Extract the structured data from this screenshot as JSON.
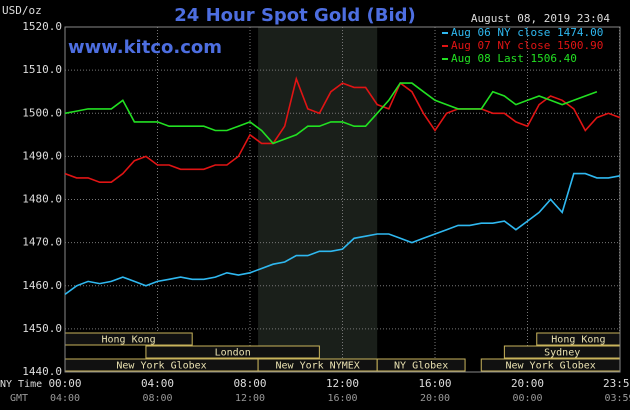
{
  "chart_data": {
    "type": "line",
    "title": "24 Hour Spot Gold (Bid)",
    "watermark": "www.kitco.com",
    "timestamp": "August 08, 2019 23:04",
    "y_label": "USD/oz",
    "x_label": "NY Time",
    "x2_label": "GMT",
    "xlim": [
      0,
      24
    ],
    "ylim": [
      1440,
      1520
    ],
    "grid": true,
    "yticks": [
      {
        "value": 1440,
        "label": "1440.0"
      },
      {
        "value": 1450,
        "label": "1450.0"
      },
      {
        "value": 1460,
        "label": "1460.0"
      },
      {
        "value": 1470,
        "label": "1470.0"
      },
      {
        "value": 1480,
        "label": "1480.0"
      },
      {
        "value": 1490,
        "label": "1490.0"
      },
      {
        "value": 1500,
        "label": "1500.0"
      },
      {
        "value": 1510,
        "label": "1510.0"
      },
      {
        "value": 1520,
        "label": "1520.0"
      }
    ],
    "xticks": [
      {
        "value": 0,
        "label": "00:00"
      },
      {
        "value": 4,
        "label": "04:00"
      },
      {
        "value": 8,
        "label": "08:00"
      },
      {
        "value": 12,
        "label": "12:00"
      },
      {
        "value": 16,
        "label": "16:00"
      },
      {
        "value": 20,
        "label": "20:00"
      },
      {
        "value": 23.98,
        "label": "23:59"
      }
    ],
    "gmt_xticks": [
      {
        "value": 0,
        "label": "04:00"
      },
      {
        "value": 4,
        "label": "08:00"
      },
      {
        "value": 8,
        "label": "12:00"
      },
      {
        "value": 12,
        "label": "16:00"
      },
      {
        "value": 16,
        "label": "20:00"
      },
      {
        "value": 20,
        "label": "00:00"
      },
      {
        "value": 23.98,
        "label": "03:59"
      }
    ],
    "highlight": {
      "start": 8.35,
      "end": 13.5,
      "color": "#1a1f1a"
    },
    "sessions": [
      {
        "name": "Hong Kong",
        "start": 0,
        "end": 5.5,
        "row": 0
      },
      {
        "name": "Hong Kong",
        "start": 20.4,
        "end": 24,
        "row": 0
      },
      {
        "name": "London",
        "start": 3.5,
        "end": 11,
        "row": 1
      },
      {
        "name": "Sydney",
        "start": 19,
        "end": 24,
        "row": 1
      },
      {
        "name": "New York Globex",
        "start": 0,
        "end": 8.35,
        "row": 2
      },
      {
        "name": "New York NYMEX",
        "start": 8.35,
        "end": 13.5,
        "row": 2
      },
      {
        "name": "NY Globex",
        "start": 13.5,
        "end": 17.3,
        "row": 2
      },
      {
        "name": "New York Globex",
        "start": 18,
        "end": 24,
        "row": 2
      }
    ],
    "x": [
      0,
      0.5,
      1,
      1.5,
      2,
      2.5,
      3,
      3.5,
      4,
      4.5,
      5,
      5.5,
      6,
      6.5,
      7,
      7.5,
      8,
      8.5,
      9,
      9.5,
      10,
      10.5,
      11,
      11.5,
      12,
      12.5,
      13,
      13.5,
      14,
      14.5,
      15,
      15.5,
      16,
      16.5,
      17,
      17.5,
      18,
      18.5,
      19,
      19.5,
      20,
      20.5,
      21,
      21.5,
      22,
      22.5,
      23,
      23.5,
      24
    ],
    "series": [
      {
        "name": "Aug 06 NY close 1474.00",
        "color": "#2fb8f0",
        "values": [
          1458,
          1460,
          1461,
          1460.5,
          1461,
          1462,
          1461,
          1460,
          1461,
          1461.5,
          1462,
          1461.5,
          1461.5,
          1462,
          1463,
          1462.5,
          1463,
          1464,
          1465,
          1465.5,
          1467,
          1467,
          1468,
          1468,
          1468.5,
          1471,
          1471.5,
          1472,
          1472,
          1471,
          1470,
          1471,
          1472,
          1473,
          1474,
          1474,
          1474.5,
          1474.5,
          1475,
          1473,
          1475,
          1477,
          1480,
          1477,
          1486,
          1486,
          1485,
          1485,
          1485.5
        ]
      },
      {
        "name": "Aug 07 NY close 1500.90",
        "color": "#e01414",
        "values": [
          1486,
          1485,
          1485,
          1484,
          1484,
          1486,
          1489,
          1490,
          1488,
          1488,
          1487,
          1487,
          1487,
          1488,
          1488,
          1490,
          1495,
          1493,
          1493,
          1497,
          1508,
          1501,
          1500,
          1505,
          1507,
          1506,
          1506,
          1502,
          1501,
          1507,
          1505,
          1500,
          1496,
          1500,
          1501,
          1501,
          1501,
          1500,
          1500,
          1498,
          1497,
          1502,
          1504,
          1503,
          1501,
          1496,
          1499,
          1500,
          1499
        ]
      },
      {
        "name": "Aug 08 Last 1506.40",
        "color": "#22e022",
        "values": [
          1500,
          1500.5,
          1501,
          1501,
          1501,
          1503,
          1498,
          1498,
          1498,
          1497,
          1497,
          1497,
          1497,
          1496,
          1496,
          1497,
          1498,
          1496,
          1493,
          1494,
          1495,
          1497,
          1497,
          1498,
          1498,
          1497,
          1497,
          1500,
          1503,
          1507,
          1507,
          1505,
          1503,
          1502,
          1501,
          1501,
          1501,
          1505,
          1504,
          1502,
          1503,
          1504,
          1503,
          1502,
          1503,
          1504,
          1505,
          null,
          null
        ]
      }
    ]
  }
}
